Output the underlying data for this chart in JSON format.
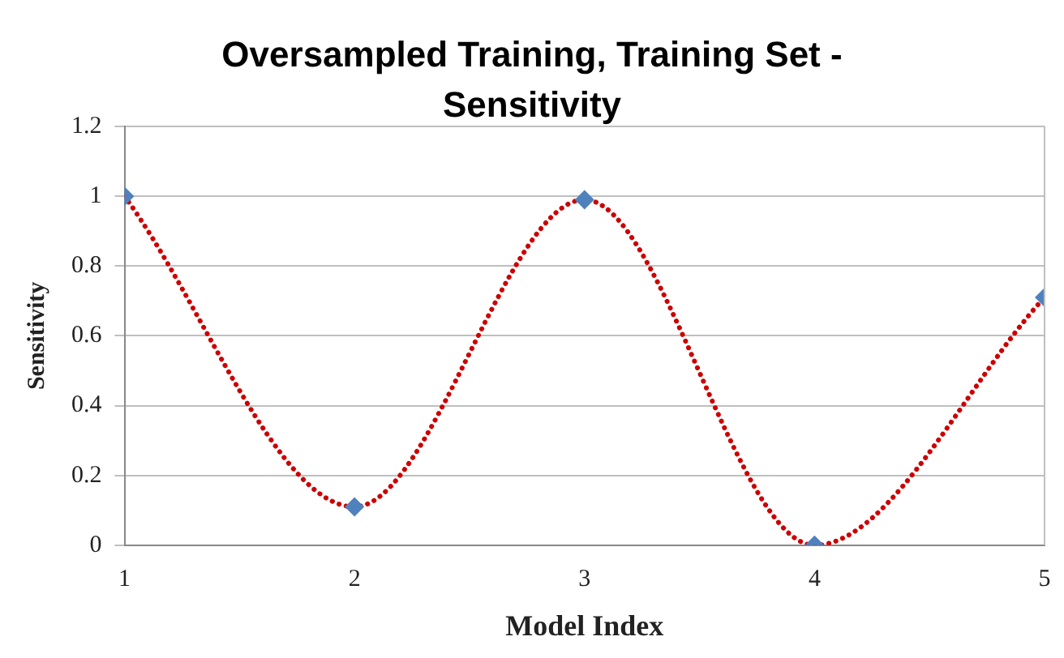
{
  "chart_data": {
    "type": "line",
    "title": "Oversampled Training, Training Set - Sensitivity",
    "xlabel": "Model Index",
    "ylabel": "Sensitivity",
    "x": [
      1,
      2,
      3,
      4,
      5
    ],
    "series": [
      {
        "color": "#cc0000",
        "values": [
          1,
          0.11,
          0.99,
          0,
          0.71
        ],
        "line_style": "dotted",
        "marker": "none"
      },
      {
        "type": "scatter",
        "color": "#4f81bd",
        "values": [
          1,
          0.11,
          0.99,
          0,
          0.71
        ],
        "marker": "diamond"
      }
    ],
    "xlim": [
      1,
      5
    ],
    "xticks": [
      1,
      2,
      3,
      4,
      5
    ],
    "ylim": [
      0,
      1.2
    ],
    "yticks": [
      0,
      0.2,
      0.4,
      0.6,
      0.8,
      1,
      1.2
    ],
    "grid": "y",
    "legend": false
  }
}
